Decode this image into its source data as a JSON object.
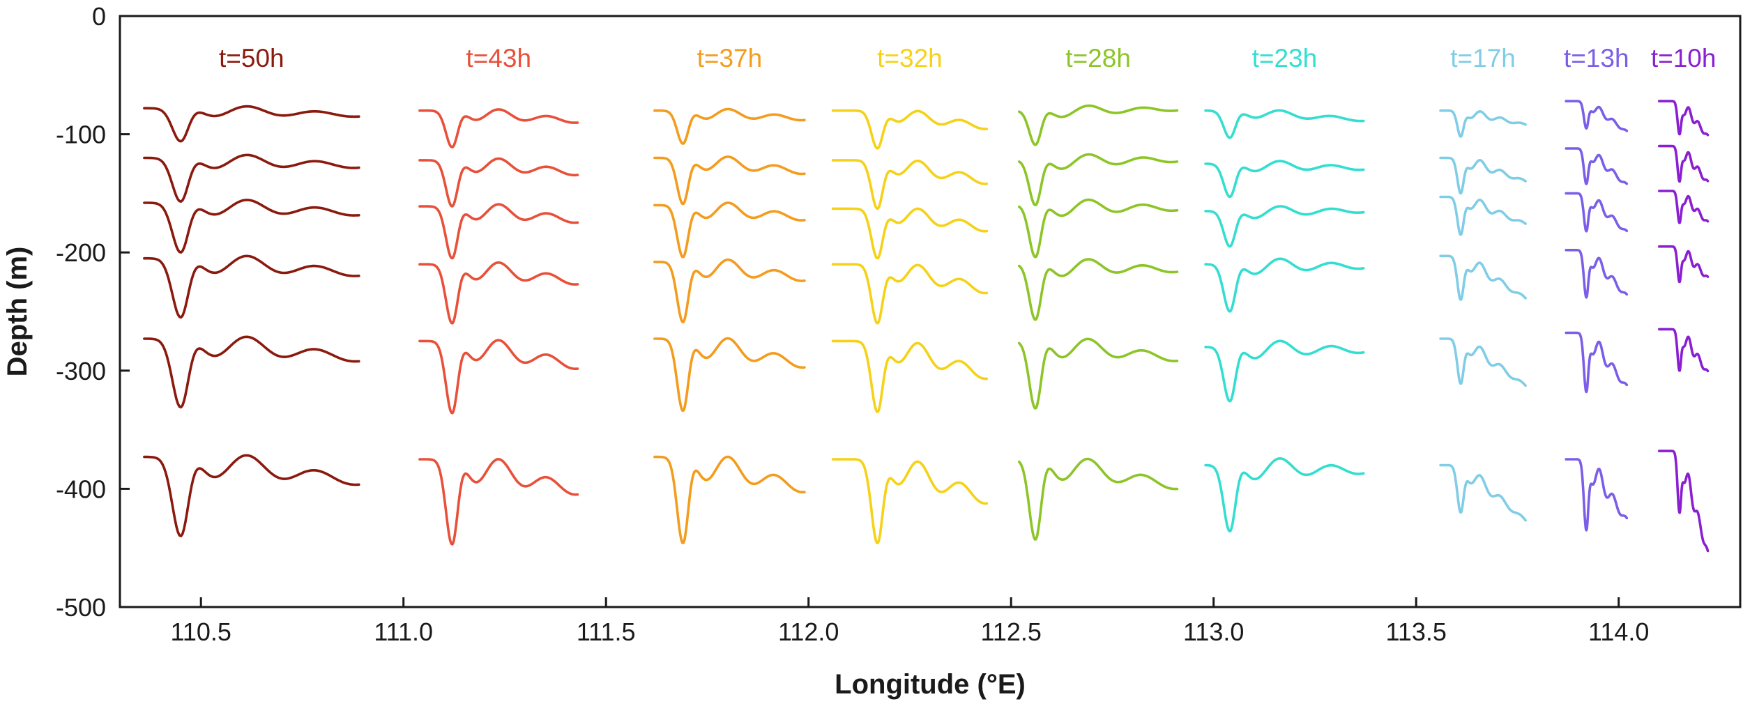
{
  "chart_data": {
    "type": "line",
    "title": "",
    "xlabel": "Longitude (°E)",
    "ylabel": "Depth (m)",
    "xlim": [
      110.3,
      114.3
    ],
    "ylim": [
      -500,
      0
    ],
    "xticks": [
      "110.5",
      "111.0",
      "111.5",
      "112.0",
      "112.5",
      "113.0",
      "113.5",
      "114.0"
    ],
    "yticks": [
      "0",
      "-100",
      "-200",
      "-300",
      "-400",
      "-500"
    ],
    "grid": false,
    "legend": "none",
    "series": [
      {
        "name": "t=50h",
        "color": "#8b1a0e",
        "x_range": [
          110.36,
          110.89
        ],
        "x_trough": 110.45,
        "profiles": [
          {
            "base": -78,
            "trough": -106,
            "end": -84
          },
          {
            "base": -120,
            "trough": -157,
            "end": -127
          },
          {
            "base": -158,
            "trough": -200,
            "end": -167
          },
          {
            "base": -205,
            "trough": -255,
            "end": -218
          },
          {
            "base": -273,
            "trough": -331,
            "end": -290
          },
          {
            "base": -373,
            "trough": -440,
            "end": -394
          }
        ]
      },
      {
        "name": "t=43h",
        "color": "#e8503a",
        "x_range": [
          111.04,
          111.43
        ],
        "x_trough": 111.12,
        "profiles": [
          {
            "base": -80,
            "trough": -111,
            "end": -89
          },
          {
            "base": -122,
            "trough": -161,
            "end": -133
          },
          {
            "base": -161,
            "trough": -205,
            "end": -173
          },
          {
            "base": -210,
            "trough": -260,
            "end": -225
          },
          {
            "base": -275,
            "trough": -336,
            "end": -296
          },
          {
            "base": -375,
            "trough": -447,
            "end": -402
          }
        ]
      },
      {
        "name": "t=37h",
        "color": "#f39c1d",
        "x_range": [
          111.62,
          111.99
        ],
        "x_trough": 111.69,
        "profiles": [
          {
            "base": -80,
            "trough": -108,
            "end": -87
          },
          {
            "base": -120,
            "trough": -159,
            "end": -132
          },
          {
            "base": -160,
            "trough": -204,
            "end": -171
          },
          {
            "base": -208,
            "trough": -259,
            "end": -222
          },
          {
            "base": -273,
            "trough": -334,
            "end": -295
          },
          {
            "base": -373,
            "trough": -446,
            "end": -400
          }
        ]
      },
      {
        "name": "t=32h",
        "color": "#f5d217",
        "x_range": [
          112.06,
          112.44
        ],
        "x_trough": 112.17,
        "profiles": [
          {
            "base": -80,
            "trough": -112,
            "end": -94
          },
          {
            "base": -122,
            "trough": -163,
            "end": -140
          },
          {
            "base": -163,
            "trough": -205,
            "end": -180
          },
          {
            "base": -210,
            "trough": -260,
            "end": -232
          },
          {
            "base": -275,
            "trough": -335,
            "end": -304
          },
          {
            "base": -375,
            "trough": -446,
            "end": -409
          }
        ]
      },
      {
        "name": "t=28h",
        "color": "#8cc527",
        "x_range": [
          112.52,
          112.91
        ],
        "x_trough": 112.56,
        "profiles": [
          {
            "base": -80,
            "trough": -109,
            "end": -79
          },
          {
            "base": -122,
            "trough": -160,
            "end": -122
          },
          {
            "base": -160,
            "trough": -204,
            "end": -163
          },
          {
            "base": -210,
            "trough": -257,
            "end": -215
          },
          {
            "base": -275,
            "trough": -332,
            "end": -290
          },
          {
            "base": -375,
            "trough": -443,
            "end": -398
          }
        ]
      },
      {
        "name": "t=23h",
        "color": "#33ded0",
        "x_range": [
          112.98,
          113.37
        ],
        "x_trough": 113.04,
        "profiles": [
          {
            "base": -80,
            "trough": -103,
            "end": -88
          },
          {
            "base": -125,
            "trough": -153,
            "end": -129
          },
          {
            "base": -165,
            "trough": -195,
            "end": -165
          },
          {
            "base": -210,
            "trough": -250,
            "end": -212
          },
          {
            "base": -280,
            "trough": -326,
            "end": -283
          },
          {
            "base": -380,
            "trough": -436,
            "end": -385
          }
        ]
      },
      {
        "name": "t=17h",
        "color": "#7fcde6",
        "x_range": [
          113.56,
          113.77
        ],
        "x_trough": 113.61,
        "profiles": [
          {
            "base": -80,
            "trough": -102,
            "end": -92
          },
          {
            "base": -120,
            "trough": -150,
            "end": -140
          },
          {
            "base": -153,
            "trough": -185,
            "end": -176
          },
          {
            "base": -203,
            "trough": -240,
            "end": -239
          },
          {
            "base": -273,
            "trough": -311,
            "end": -313
          },
          {
            "base": -380,
            "trough": -420,
            "end": -427
          }
        ]
      },
      {
        "name": "t=13h",
        "color": "#7b5ee8",
        "x_range": [
          113.87,
          114.02
        ],
        "x_trough": 113.92,
        "profiles": [
          {
            "base": -72,
            "trough": -95,
            "end": -98
          },
          {
            "base": -112,
            "trough": -142,
            "end": -143
          },
          {
            "base": -150,
            "trough": -182,
            "end": -183
          },
          {
            "base": -198,
            "trough": -238,
            "end": -237
          },
          {
            "base": -268,
            "trough": -318,
            "end": -314
          },
          {
            "base": -375,
            "trough": -435,
            "end": -427
          }
        ]
      },
      {
        "name": "t=10h",
        "color": "#8a1fd2",
        "x_range": [
          114.1,
          114.22
        ],
        "x_trough": 114.15,
        "profiles": [
          {
            "base": -72,
            "trough": -100,
            "end": -102
          },
          {
            "base": -110,
            "trough": -140,
            "end": -141
          },
          {
            "base": -148,
            "trough": -175,
            "end": -175
          },
          {
            "base": -195,
            "trough": -225,
            "end": -222
          },
          {
            "base": -265,
            "trough": -300,
            "end": -302
          },
          {
            "base": -368,
            "trough": -420,
            "end": -455
          }
        ]
      }
    ]
  }
}
